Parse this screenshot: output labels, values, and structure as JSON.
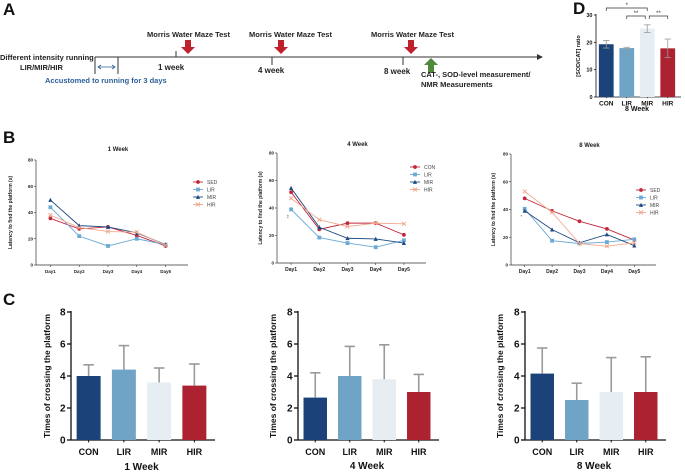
{
  "panels": {
    "a": "A",
    "b": "B",
    "c": "C",
    "d": "D"
  },
  "timeline": {
    "left_label_1": "Different intensity running",
    "left_label_2": "LIR/MIR/HIR",
    "accustom_label": "Accustomed to running for 3 days",
    "test_label": "Morris Water Maze Test",
    "weeks": [
      "1 week",
      "4 week",
      "8 week"
    ],
    "measure_label_1": "CAT-, SOD-level measurement/",
    "measure_label_2": "NMR Measurements",
    "colors": {
      "red_arrow": "#c0202e",
      "green_arrow": "#4f8a3a",
      "accustom_text": "#2e5f9a"
    }
  },
  "chart_data": [
    {
      "id": "D",
      "type": "bar",
      "title": "",
      "xlabel": "8 Week",
      "ylabel": "[SOD/CAT] ratio",
      "ylim": [
        0,
        30
      ],
      "yticks": [
        0,
        10,
        20,
        30
      ],
      "categories": [
        "CON",
        "LIR",
        "MIR",
        "HIR"
      ],
      "values": [
        19.3,
        17.9,
        25.0,
        17.8
      ],
      "errors": [
        1.4,
        0.3,
        1.4,
        3.4
      ],
      "colors": [
        "#1b4279",
        "#6fa4c7",
        "#e6eef3",
        "#ad2231"
      ],
      "significance": [
        {
          "from": "CON",
          "to": "MIR",
          "label": "*"
        },
        {
          "from": "LIR",
          "to": "MIR",
          "label": "**"
        },
        {
          "from": "MIR",
          "to": "HIR",
          "label": "**"
        }
      ]
    },
    {
      "id": "B1",
      "type": "line",
      "title": "1 Week",
      "xlabel": "",
      "ylabel": "Latency to find the platform (s)",
      "ylim": [
        0,
        80
      ],
      "yticks": [
        0,
        20,
        40,
        60,
        80
      ],
      "x": [
        "Day1",
        "Day2",
        "Day3",
        "Day4",
        "Day5"
      ],
      "legend_position": "right",
      "series": [
        {
          "name": "SED",
          "values": [
            35.5,
            27.5,
            29,
            22.5,
            14.5
          ],
          "color": "#c0283a",
          "marker": "circle"
        },
        {
          "name": "LIR",
          "values": [
            44,
            22,
            14.5,
            20,
            15.5
          ],
          "color": "#6aaad6",
          "marker": "square"
        },
        {
          "name": "MIR",
          "values": [
            49.5,
            30,
            29,
            24.5,
            15.5
          ],
          "color": "#1e4a82",
          "marker": "triangle"
        },
        {
          "name": "HIR",
          "values": [
            38,
            28.5,
            25.5,
            25,
            15
          ],
          "color": "#f2a98f",
          "marker": "x"
        }
      ],
      "annotations": []
    },
    {
      "id": "B4",
      "type": "line",
      "title": "4 Week",
      "xlabel": "",
      "ylabel": "Latency to find the platform (s)",
      "ylim": [
        0,
        80
      ],
      "yticks": [
        0,
        20,
        40,
        60,
        80
      ],
      "x": [
        "Day1",
        "Day2",
        "Day3",
        "Day4",
        "Day5"
      ],
      "legend_position": "top-right",
      "series": [
        {
          "name": "CON",
          "values": [
            51.5,
            24.5,
            29,
            29,
            20.5
          ],
          "color": "#c0283a",
          "marker": "circle"
        },
        {
          "name": "LIR",
          "values": [
            39,
            18.5,
            14.5,
            11.5,
            16.5
          ],
          "color": "#6aaad6",
          "marker": "square"
        },
        {
          "name": "MIR",
          "values": [
            54.5,
            26,
            18,
            17.5,
            14.5
          ],
          "color": "#1e4a82",
          "marker": "triangle"
        },
        {
          "name": "HIR",
          "values": [
            47,
            31.5,
            26.5,
            29,
            28.5
          ],
          "color": "#f2a98f",
          "marker": "x"
        }
      ],
      "annotations": [
        {
          "x": "Day1",
          "label": "**"
        }
      ]
    },
    {
      "id": "B8",
      "type": "line",
      "title": "8 Week",
      "xlabel": "",
      "ylabel": "Latency to find the platform (s)",
      "ylim": [
        0,
        80
      ],
      "yticks": [
        0,
        20,
        40,
        60,
        80
      ],
      "x": [
        "Day1",
        "Day2",
        "Day3",
        "Day4",
        "Day5"
      ],
      "legend_position": "right",
      "series": [
        {
          "name": "SED",
          "values": [
            48,
            39,
            31.5,
            26,
            18
          ],
          "color": "#c0283a",
          "marker": "circle"
        },
        {
          "name": "LIR",
          "values": [
            40.5,
            17.5,
            15.5,
            16.5,
            18.5
          ],
          "color": "#6aaad6",
          "marker": "square"
        },
        {
          "name": "MIR",
          "values": [
            39,
            25.5,
            16,
            22,
            14
          ],
          "color": "#1e4a82",
          "marker": "triangle"
        },
        {
          "name": "HIR",
          "values": [
            53,
            38,
            15.5,
            13.5,
            16
          ],
          "color": "#f2a98f",
          "marker": "x"
        }
      ],
      "annotations": [
        {
          "x": "Day1",
          "label": "*"
        }
      ]
    },
    {
      "id": "C1",
      "type": "bar",
      "title": "",
      "xlabel": "1 Week",
      "ylabel": "Times of crossing the platform",
      "ylim": [
        0,
        8
      ],
      "yticks": [
        0,
        2,
        4,
        6,
        8
      ],
      "categories": [
        "CON",
        "LIR",
        "MIR",
        "HIR"
      ],
      "values": [
        4.0,
        4.4,
        3.6,
        3.4
      ],
      "errors": [
        0.7,
        1.5,
        0.9,
        1.35
      ],
      "colors": [
        "#1b4279",
        "#6fa4c7",
        "#e6eef3",
        "#ad2231"
      ]
    },
    {
      "id": "C4",
      "type": "bar",
      "title": "",
      "xlabel": "4 Week",
      "ylabel": "Times of crossing the platform",
      "ylim": [
        0,
        8
      ],
      "yticks": [
        0,
        2,
        4,
        6,
        8
      ],
      "categories": [
        "CON",
        "LIR",
        "MIR",
        "HIR"
      ],
      "values": [
        2.65,
        4.0,
        3.8,
        3.0
      ],
      "errors": [
        1.55,
        1.85,
        2.15,
        1.1
      ],
      "colors": [
        "#1b4279",
        "#6fa4c7",
        "#e6eef3",
        "#ad2231"
      ]
    },
    {
      "id": "C8",
      "type": "bar",
      "title": "",
      "xlabel": "8 Week",
      "ylabel": "Times of crossing the platform",
      "ylim": [
        0,
        8
      ],
      "yticks": [
        0,
        2,
        4,
        6,
        8
      ],
      "categories": [
        "CON",
        "LIR",
        "MIR",
        "HIR"
      ],
      "values": [
        4.15,
        2.5,
        3.0,
        3.0
      ],
      "errors": [
        1.6,
        1.05,
        2.15,
        2.2
      ],
      "colors": [
        "#1b4279",
        "#6fa4c7",
        "#e6eef3",
        "#ad2231"
      ]
    }
  ]
}
